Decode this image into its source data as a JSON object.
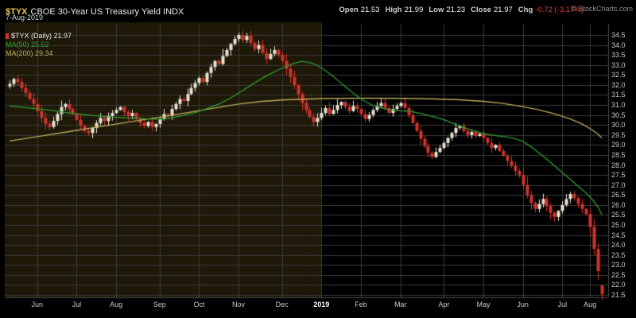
{
  "header": {
    "symbol": "$TYX",
    "title": "CBOE 30-Year US Treasury Yield INDX",
    "date": "7-Aug-2019",
    "stats": [
      {
        "label": "Open",
        "value": "21.53"
      },
      {
        "label": "High",
        "value": "21.99"
      },
      {
        "label": "Low",
        "value": "21.23"
      },
      {
        "label": "Close",
        "value": "21.97"
      },
      {
        "label": "Chg",
        "value": "-0.72 (-3.17%)",
        "color": "#e03c3c"
      }
    ],
    "copyright": "© StockCharts.com"
  },
  "legend": [
    {
      "label": "$TYX (Daily)",
      "value": "21.97",
      "color": "#e6e6e6",
      "swatch": "#d0342c"
    },
    {
      "label": "MA(50)",
      "value": "25.52",
      "color": "#2f9e2f"
    },
    {
      "label": "MA(200)",
      "value": "29.34",
      "color": "#bcaa5e"
    }
  ],
  "chart_data": {
    "type": "candlestick",
    "symbol": "$TYX",
    "timeframe": "Daily",
    "title": "CBOE 30-Year US Treasury Yield INDX",
    "last_quote": {
      "open": 21.53,
      "high": 21.99,
      "low": 21.23,
      "close": 21.97,
      "chg_abs": -0.72,
      "chg_pct": -3.17
    },
    "overlays": [
      {
        "name": "MA(50)",
        "last": 25.52
      },
      {
        "name": "MA(200)",
        "last": 29.34
      }
    ],
    "ylim": [
      21.1,
      34.8
    ],
    "y_ticks": [
      34.5,
      34.0,
      33.5,
      33.0,
      32.5,
      32.0,
      31.5,
      31.0,
      30.5,
      30.0,
      29.5,
      29.0,
      28.5,
      28.0,
      27.5,
      27.0,
      26.5,
      26.0,
      25.5,
      25.0,
      24.5,
      24.0,
      23.5,
      23.0,
      22.5,
      22.0,
      21.5
    ],
    "x_ticks": [
      {
        "label": "Jun",
        "i": 7
      },
      {
        "label": "Jul",
        "i": 17
      },
      {
        "label": "Aug",
        "i": 27
      },
      {
        "label": "Sep",
        "i": 38
      },
      {
        "label": "Oct",
        "i": 48
      },
      {
        "label": "Nov",
        "i": 58
      },
      {
        "label": "Dec",
        "i": 69
      },
      {
        "label": "2019",
        "i": 79,
        "bold": true
      },
      {
        "label": "Feb",
        "i": 89
      },
      {
        "label": "Mar",
        "i": 99
      },
      {
        "label": "Apr",
        "i": 110
      },
      {
        "label": "May",
        "i": 120
      },
      {
        "label": "Jun",
        "i": 130
      },
      {
        "label": "Jul",
        "i": 140
      },
      {
        "label": "Aug",
        "i": 147
      }
    ],
    "shade_end_index": 79,
    "closes": [
      32.05,
      32.3,
      32.15,
      31.85,
      31.6,
      31.3,
      31.05,
      30.7,
      30.35,
      30.05,
      29.9,
      30.2,
      30.55,
      30.9,
      31.05,
      30.8,
      30.55,
      30.25,
      29.95,
      29.7,
      29.6,
      29.85,
      30.1,
      30.35,
      30.2,
      30.45,
      30.6,
      30.75,
      30.9,
      30.65,
      30.45,
      30.6,
      30.3,
      30.1,
      29.95,
      30.15,
      29.9,
      30.05,
      30.3,
      30.55,
      30.45,
      30.8,
      31.05,
      31.3,
      31.2,
      31.55,
      31.85,
      32.1,
      32.35,
      32.15,
      32.6,
      32.9,
      33.2,
      33.05,
      33.45,
      33.75,
      34.05,
      34.3,
      34.5,
      34.25,
      34.45,
      34.1,
      33.8,
      34.0,
      33.6,
      33.3,
      33.55,
      33.75,
      33.5,
      33.2,
      32.8,
      32.4,
      32.0,
      31.55,
      31.1,
      30.75,
      30.4,
      30.15,
      30.35,
      30.6,
      30.85,
      30.55,
      30.75,
      31.0,
      31.15,
      30.9,
      30.7,
      30.95,
      30.8,
      30.55,
      30.3,
      30.5,
      30.75,
      30.95,
      31.1,
      30.85,
      30.6,
      30.8,
      30.95,
      31.1,
      30.85,
      30.5,
      30.1,
      29.7,
      29.3,
      28.95,
      28.6,
      28.4,
      28.65,
      28.85,
      29.1,
      29.35,
      29.6,
      29.85,
      29.95,
      29.7,
      29.5,
      29.65,
      29.45,
      29.55,
      29.35,
      29.1,
      28.85,
      29.0,
      28.7,
      28.45,
      28.2,
      27.95,
      27.7,
      27.5,
      27.0,
      26.5,
      26.1,
      25.8,
      26.05,
      26.3,
      25.95,
      25.6,
      25.4,
      25.7,
      26.0,
      26.3,
      26.55,
      26.35,
      26.05,
      25.8,
      25.55,
      24.9,
      23.8,
      22.69,
      21.97
    ],
    "last_bar_ohlc": {
      "open": 21.53,
      "high": 21.99,
      "low": 21.23,
      "close": 21.97
    },
    "ma50": [
      [
        0,
        30.95
      ],
      [
        5,
        30.85
      ],
      [
        10,
        30.75
      ],
      [
        15,
        30.6
      ],
      [
        20,
        30.5
      ],
      [
        25,
        30.4
      ],
      [
        30,
        30.35
      ],
      [
        35,
        30.3
      ],
      [
        38,
        30.28
      ],
      [
        41,
        30.35
      ],
      [
        44,
        30.48
      ],
      [
        47,
        30.62
      ],
      [
        50,
        30.82
      ],
      [
        53,
        31.05
      ],
      [
        56,
        31.35
      ],
      [
        59,
        31.72
      ],
      [
        62,
        32.1
      ],
      [
        65,
        32.45
      ],
      [
        68,
        32.75
      ],
      [
        70,
        32.92
      ],
      [
        72,
        33.08
      ],
      [
        74,
        33.18
      ],
      [
        76,
        33.12
      ],
      [
        78,
        32.98
      ],
      [
        80,
        32.72
      ],
      [
        82,
        32.42
      ],
      [
        84,
        32.08
      ],
      [
        86,
        31.76
      ],
      [
        88,
        31.45
      ],
      [
        90,
        31.18
      ],
      [
        92,
        30.98
      ],
      [
        94,
        30.86
      ],
      [
        96,
        30.78
      ],
      [
        98,
        30.72
      ],
      [
        100,
        30.7
      ],
      [
        102,
        30.66
      ],
      [
        104,
        30.58
      ],
      [
        106,
        30.48
      ],
      [
        108,
        30.38
      ],
      [
        110,
        30.26
      ],
      [
        112,
        30.1
      ],
      [
        114,
        29.94
      ],
      [
        116,
        29.8
      ],
      [
        118,
        29.68
      ],
      [
        120,
        29.58
      ],
      [
        122,
        29.5
      ],
      [
        124,
        29.45
      ],
      [
        126,
        29.4
      ],
      [
        128,
        29.32
      ],
      [
        130,
        29.18
      ],
      [
        132,
        28.92
      ],
      [
        134,
        28.62
      ],
      [
        136,
        28.3
      ],
      [
        138,
        27.96
      ],
      [
        140,
        27.62
      ],
      [
        142,
        27.28
      ],
      [
        144,
        26.94
      ],
      [
        146,
        26.6
      ],
      [
        148,
        26.18
      ],
      [
        149,
        25.9
      ],
      [
        150,
        25.52
      ]
    ],
    "ma200": [
      [
        0,
        29.2
      ],
      [
        8,
        29.45
      ],
      [
        16,
        29.7
      ],
      [
        24,
        29.95
      ],
      [
        32,
        30.2
      ],
      [
        40,
        30.45
      ],
      [
        46,
        30.65
      ],
      [
        52,
        30.85
      ],
      [
        58,
        31.05
      ],
      [
        64,
        31.18
      ],
      [
        70,
        31.26
      ],
      [
        79,
        31.32
      ],
      [
        90,
        31.34
      ],
      [
        100,
        31.33
      ],
      [
        108,
        31.3
      ],
      [
        114,
        31.26
      ],
      [
        120,
        31.18
      ],
      [
        125,
        31.08
      ],
      [
        130,
        30.92
      ],
      [
        134,
        30.76
      ],
      [
        138,
        30.56
      ],
      [
        142,
        30.3
      ],
      [
        145,
        30.05
      ],
      [
        147,
        29.82
      ],
      [
        149,
        29.55
      ],
      [
        150,
        29.34
      ]
    ],
    "colors": {
      "up": "#e8e3d3",
      "down": "#d0342c",
      "ma50": "#2f9e2f",
      "ma200": "#bcaa5e",
      "grid": "#3a3a3a",
      "shade": "#1e1808",
      "axis_text": "#c8c8c8",
      "background": "#000000",
      "symbol_gold": "#e5c758"
    }
  }
}
